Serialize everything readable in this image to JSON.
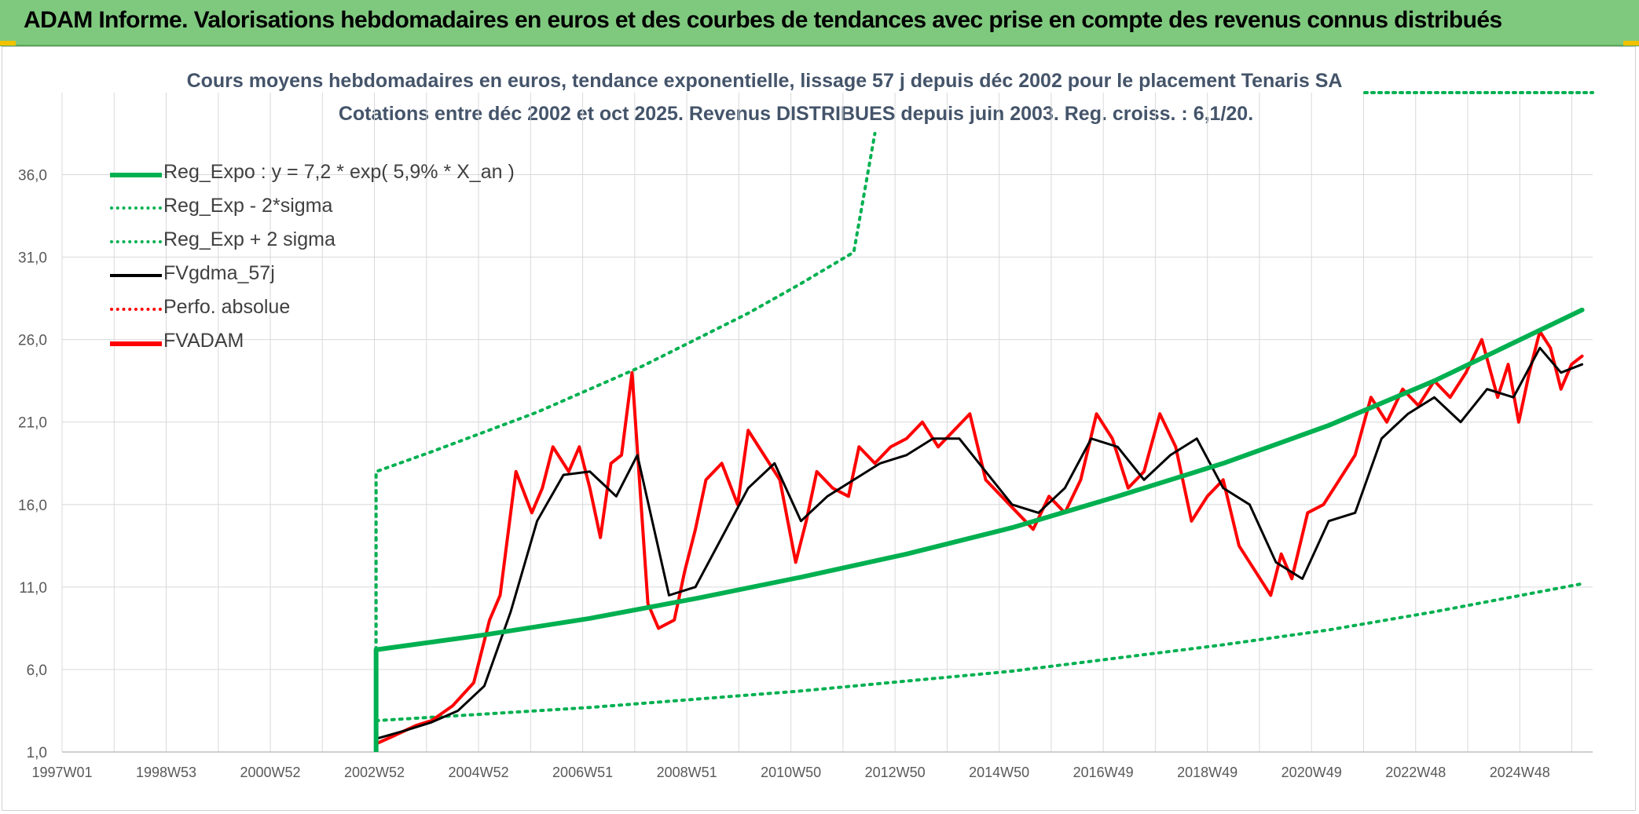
{
  "banner": {
    "title": "ADAM Informe. Valorisations hebdomadaires en euros et des courbes de tendances avec prise en compte des revenus connus distribués"
  },
  "colors": {
    "banner_bg": "#7fc97f",
    "reg_green": "#00b050",
    "fvadam_red": "#ff0000",
    "fvgdma_black": "#000000",
    "grid": "#d9d9d9"
  },
  "chart_data": {
    "type": "line",
    "title": "Cours moyens hebdomadaires en euros, tendance exponentielle, lissage 57 j depuis déc 2002 pour le placement Tenaris SA",
    "subtitle": "Cotations entre déc 2002 et oct 2025. Revenus DISTRIBUES depuis juin 2003. Reg. croiss. : 6,1/20.",
    "x_tick_labels": [
      "1997W01",
      "1998W53",
      "2000W52",
      "2002W52",
      "2004W52",
      "2006W51",
      "2008W51",
      "2010W50",
      "2012W50",
      "2014W50",
      "2016W49",
      "2018W49",
      "2020W49",
      "2022W48",
      "2024W48"
    ],
    "y_tick_labels": [
      "1,0",
      "6,0",
      "11,0",
      "16,0",
      "21,0",
      "26,0",
      "31,0",
      "36,0"
    ],
    "xlim": [
      1997.0,
      2026.0
    ],
    "ylim": [
      1.0,
      38.5
    ],
    "grid": true,
    "legend_position": "top-left",
    "legend": [
      {
        "label": "Reg_Expo : y = 7,2 * exp( 5,9% *  X_an )",
        "style": "solid-thick",
        "color": "#00b050"
      },
      {
        "label": "Reg_Exp - 2*sigma",
        "style": "dotted",
        "color": "#00b050"
      },
      {
        "label": "Reg_Exp + 2 sigma",
        "style": "dotted",
        "color": "#00b050"
      },
      {
        "label": "FVgdma_57j",
        "style": "solid",
        "color": "#000000"
      },
      {
        "label": "Perfo. absolue",
        "style": "dotted",
        "color": "#ff0000"
      },
      {
        "label": "FVADAM",
        "style": "solid-thick",
        "color": "#ff0000"
      }
    ],
    "series": [
      {
        "name": "Reg_Expo : y = 7,2 * exp( 5,9% *  X_an )",
        "x": [
          2002.95,
          2005.0,
          2007.0,
          2009.0,
          2011.0,
          2013.0,
          2015.0,
          2017.0,
          2019.0,
          2021.0,
          2023.0,
          2025.8
        ],
        "values": [
          7.2,
          8.1,
          9.1,
          10.3,
          11.6,
          13.0,
          14.6,
          16.5,
          18.5,
          20.8,
          23.5,
          27.8
        ]
      },
      {
        "name": "Reg_Exp - 2*sigma",
        "x": [
          2002.95,
          2005.0,
          2007.0,
          2009.0,
          2011.0,
          2013.0,
          2015.0,
          2017.0,
          2019.0,
          2021.0,
          2023.0,
          2025.8
        ],
        "values": [
          2.9,
          3.3,
          3.7,
          4.2,
          4.7,
          5.3,
          5.9,
          6.7,
          7.5,
          8.4,
          9.5,
          11.2
        ]
      },
      {
        "name": "Reg_Exp + 2 sigma",
        "x": [
          2002.95,
          2004.0,
          2005.0,
          2006.0,
          2007.0,
          2008.0,
          2009.0,
          2010.0,
          2011.0,
          2012.0,
          2012.4
        ],
        "values": [
          18.0,
          19.2,
          20.4,
          21.6,
          23.0,
          24.4,
          26.0,
          27.6,
          29.4,
          31.3,
          38.5
        ]
      },
      {
        "name": "FVgdma_57j",
        "x": [
          2002.95,
          2003.5,
          2004.0,
          2004.5,
          2005.0,
          2005.5,
          2006.0,
          2006.5,
          2007.0,
          2007.5,
          2007.9,
          2008.5,
          2009.0,
          2009.5,
          2010.0,
          2010.5,
          2011.0,
          2011.5,
          2012.0,
          2012.5,
          2013.0,
          2013.5,
          2014.0,
          2014.5,
          2015.0,
          2015.5,
          2016.0,
          2016.5,
          2017.0,
          2017.5,
          2018.0,
          2018.5,
          2019.0,
          2019.5,
          2020.0,
          2020.5,
          2021.0,
          2021.5,
          2022.0,
          2022.5,
          2023.0,
          2023.5,
          2024.0,
          2024.5,
          2025.0,
          2025.4,
          2025.8
        ],
        "values": [
          1.8,
          2.3,
          2.8,
          3.5,
          5.0,
          9.5,
          15.0,
          17.8,
          18.0,
          16.5,
          19.0,
          10.5,
          11.0,
          14.0,
          17.0,
          18.5,
          15.0,
          16.5,
          17.5,
          18.5,
          19.0,
          20.0,
          20.0,
          18.0,
          16.0,
          15.5,
          17.0,
          20.0,
          19.5,
          17.5,
          19.0,
          20.0,
          17.0,
          16.0,
          12.5,
          11.5,
          15.0,
          15.5,
          20.0,
          21.5,
          22.5,
          21.0,
          23.0,
          22.5,
          25.5,
          24.0,
          24.5
        ]
      },
      {
        "name": "FVADAM",
        "x": [
          2002.95,
          2003.3,
          2003.7,
          2004.0,
          2004.4,
          2004.8,
          2005.1,
          2005.3,
          2005.6,
          2005.9,
          2006.1,
          2006.3,
          2006.6,
          2006.8,
          2007.0,
          2007.2,
          2007.4,
          2007.6,
          2007.8,
          2007.95,
          2008.1,
          2008.3,
          2008.6,
          2008.8,
          2009.0,
          2009.2,
          2009.5,
          2009.8,
          2010.0,
          2010.3,
          2010.6,
          2010.9,
          2011.1,
          2011.3,
          2011.6,
          2011.9,
          2012.1,
          2012.4,
          2012.7,
          2013.0,
          2013.3,
          2013.6,
          2013.9,
          2014.2,
          2014.5,
          2014.8,
          2015.1,
          2015.4,
          2015.7,
          2016.0,
          2016.3,
          2016.6,
          2016.9,
          2017.2,
          2017.5,
          2017.8,
          2018.1,
          2018.4,
          2018.7,
          2019.0,
          2019.3,
          2019.6,
          2019.9,
          2020.1,
          2020.3,
          2020.6,
          2020.9,
          2021.2,
          2021.5,
          2021.8,
          2022.1,
          2022.4,
          2022.7,
          2023.0,
          2023.3,
          2023.6,
          2023.9,
          2024.2,
          2024.4,
          2024.6,
          2024.8,
          2025.0,
          2025.2,
          2025.4,
          2025.6,
          2025.8
        ],
        "values": [
          1.5,
          2.0,
          2.6,
          2.9,
          3.8,
          5.2,
          9.0,
          10.5,
          18.0,
          15.5,
          17.0,
          19.5,
          18.0,
          19.5,
          17.0,
          14.0,
          18.5,
          19.0,
          24.0,
          17.0,
          10.0,
          8.5,
          9.0,
          12.0,
          14.5,
          17.5,
          18.5,
          16.0,
          20.5,
          19.0,
          17.5,
          12.5,
          15.0,
          18.0,
          17.0,
          16.5,
          19.5,
          18.5,
          19.5,
          20.0,
          21.0,
          19.5,
          20.5,
          21.5,
          17.5,
          16.5,
          15.5,
          14.5,
          16.5,
          15.5,
          17.5,
          21.5,
          20.0,
          17.0,
          18.0,
          21.5,
          19.5,
          15.0,
          16.5,
          17.5,
          13.5,
          12.0,
          10.5,
          13.0,
          11.5,
          15.5,
          16.0,
          17.5,
          19.0,
          22.5,
          21.0,
          23.0,
          22.0,
          23.5,
          22.5,
          24.0,
          26.0,
          22.5,
          24.5,
          21.0,
          24.0,
          26.5,
          25.5,
          23.0,
          24.5,
          25.0
        ]
      }
    ]
  }
}
